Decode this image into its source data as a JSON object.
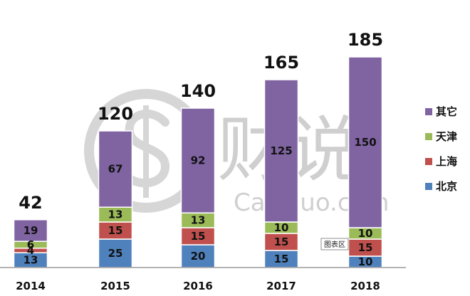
{
  "chart_data": {
    "type": "bar",
    "stacked": true,
    "categories": [
      "2014",
      "2015",
      "2016",
      "2017",
      "2018"
    ],
    "series": [
      {
        "name": "北京",
        "values": [
          13,
          25,
          20,
          15,
          10
        ],
        "color": "#4f81bd"
      },
      {
        "name": "上海",
        "values": [
          4,
          15,
          15,
          15,
          15
        ],
        "color": "#c0504d"
      },
      {
        "name": "天津",
        "values": [
          6,
          13,
          13,
          10,
          10
        ],
        "color": "#9bbb59"
      },
      {
        "name": "其它",
        "values": [
          19,
          67,
          92,
          125,
          150
        ],
        "color": "#8064a2"
      }
    ],
    "totals": [
      42,
      120,
      140,
      165,
      185
    ],
    "legend_position": "right",
    "grid": false
  },
  "watermark": {
    "main": "财说",
    "url": "Caishuo.com"
  },
  "tooltip": {
    "text": "图表区"
  }
}
